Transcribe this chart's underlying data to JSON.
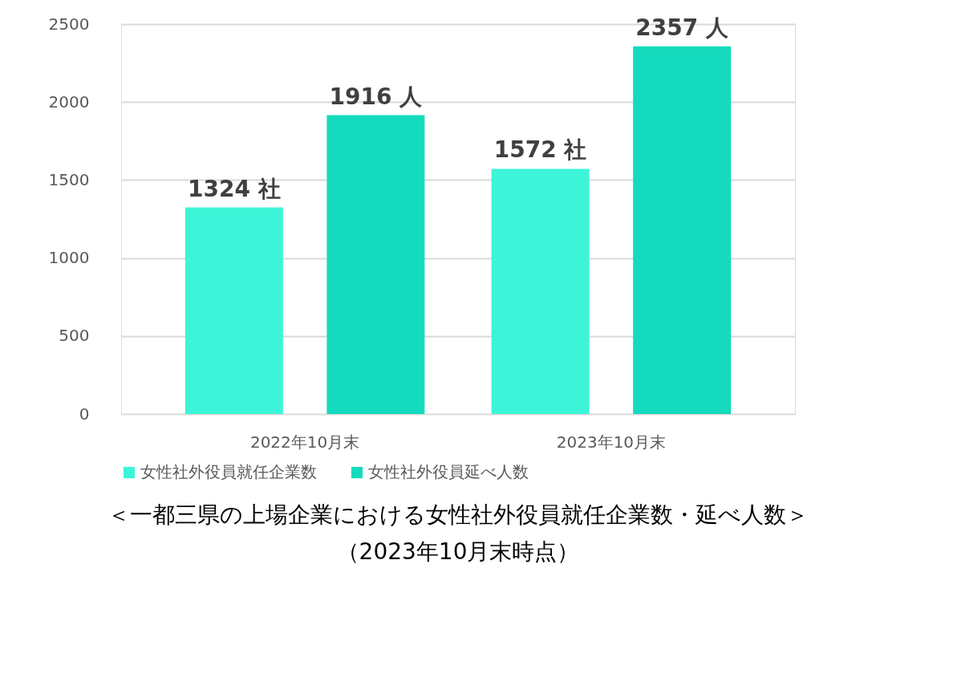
{
  "chart_data": {
    "type": "bar",
    "title": "＜一都三県の上場企業における女性社外役員就任企業数・延べ人数＞",
    "subtitle": "（2023年10月末時点）",
    "categories": [
      "2022年10月末",
      "2023年10月末"
    ],
    "series": [
      {
        "name": "女性社外役員就任企業数",
        "color": "#3cf5d8",
        "values": [
          1324,
          1572
        ],
        "value_labels": [
          "1324 社",
          "1572 社"
        ]
      },
      {
        "name": "女性社外役員延べ人数",
        "color": "#14dbbd",
        "values": [
          1916,
          2357
        ],
        "value_labels": [
          "1916 人",
          "2357 人"
        ]
      }
    ],
    "ylim": [
      0,
      2500
    ],
    "yticks": [
      0,
      500,
      1000,
      1500,
      2000,
      2500
    ],
    "grid": "y",
    "legend": "bottom"
  }
}
